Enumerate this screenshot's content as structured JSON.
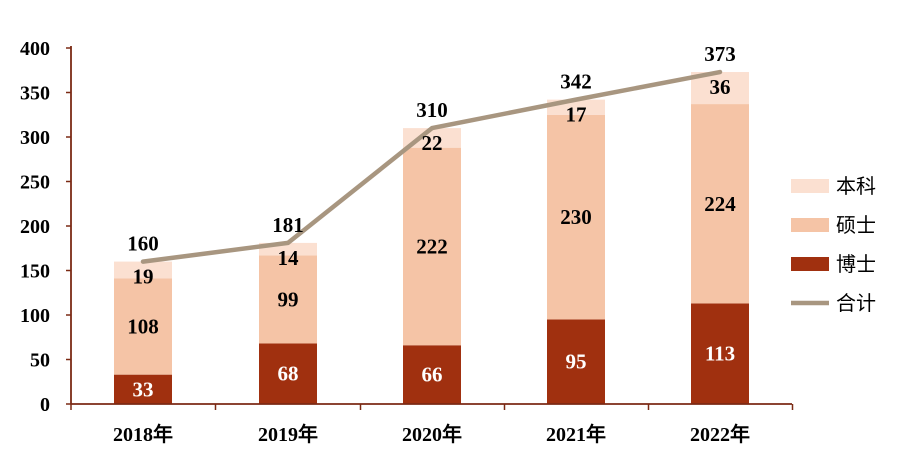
{
  "chart_data": {
    "type": "bar",
    "stacked": true,
    "categories": [
      "2018年",
      "2019年",
      "2020年",
      "2021年",
      "2022年"
    ],
    "series": [
      {
        "name": "博士",
        "values": [
          33,
          68,
          66,
          95,
          113
        ],
        "color": "#A0300F"
      },
      {
        "name": "硕士",
        "values": [
          108,
          99,
          222,
          230,
          224
        ],
        "color": "#F5C4A6"
      },
      {
        "name": "本科",
        "values": [
          19,
          14,
          22,
          17,
          36
        ],
        "color": "#FBE0D1"
      }
    ],
    "line": {
      "name": "合计",
      "type": "line",
      "values": [
        160,
        181,
        310,
        342,
        373
      ],
      "color": "#A89680"
    },
    "yticks": [
      "0",
      "50",
      "100",
      "150",
      "200",
      "250",
      "300",
      "350",
      "400"
    ],
    "ylim": [
      0,
      400
    ],
    "axis_color": "#7B2A14",
    "grid": false,
    "legend_position": "right",
    "title": "",
    "xlabel": "",
    "ylabel": ""
  }
}
